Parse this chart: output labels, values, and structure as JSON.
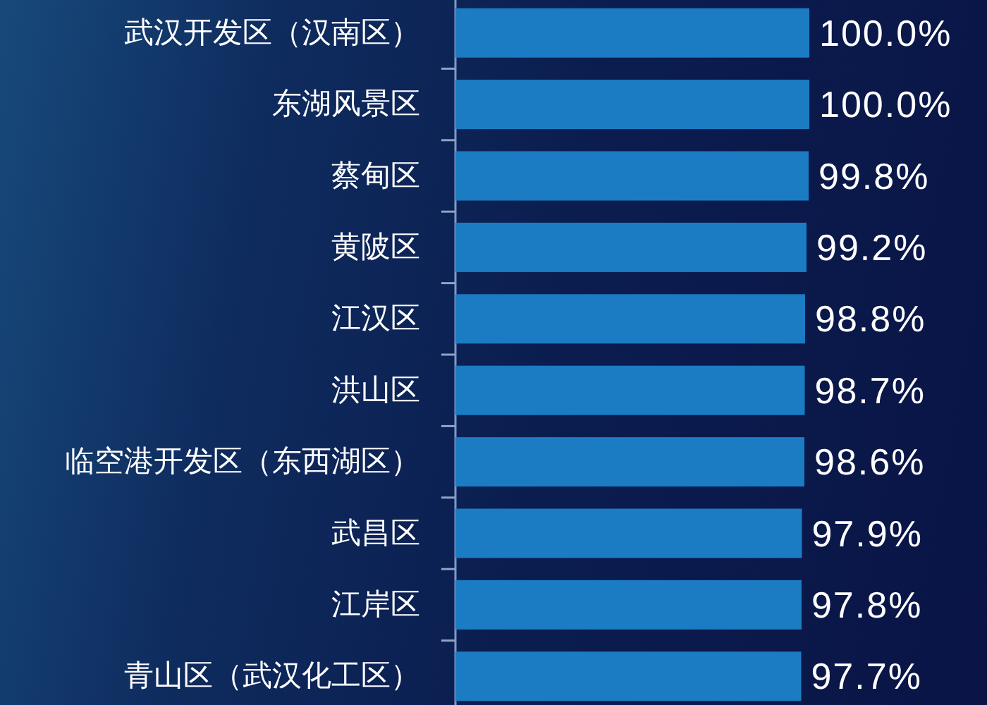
{
  "chart_data": {
    "type": "bar",
    "orientation": "horizontal",
    "tick_labels": "y",
    "color": "#1b7cc3",
    "categories": [
      "武汉开发区（汉南区）",
      "东湖风景区",
      "蔡甸区",
      "黄陂区",
      "江汉区",
      "洪山区",
      "临空港开发区（东西湖区）",
      "武昌区",
      "江岸区",
      "青山区（武汉化工区）"
    ],
    "values": [
      100.0,
      100.0,
      99.8,
      99.2,
      98.8,
      98.7,
      98.6,
      97.9,
      97.8,
      97.7
    ],
    "value_labels": [
      "100.0%",
      "100.0%",
      "99.8%",
      "99.2%",
      "98.8%",
      "98.7%",
      "98.6%",
      "97.9%",
      "97.8%",
      "97.7%"
    ]
  }
}
